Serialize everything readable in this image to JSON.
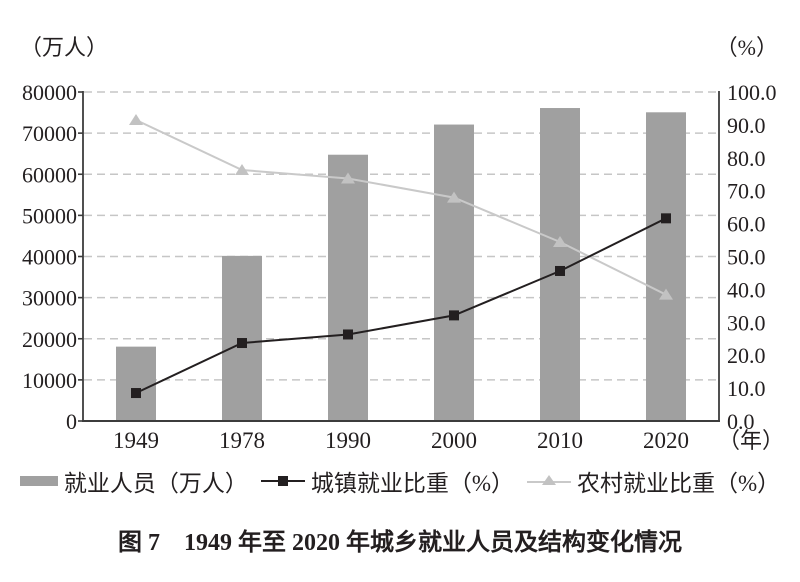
{
  "caption": "图 7　1949 年至 2020 年城乡就业人员及结构变化情况",
  "colors": {
    "bar": "#a0a0a0",
    "urban_line": "#231f20",
    "rural_line": "#c9c9c9",
    "rural_marker": "#c2c2c2",
    "gridline": "#c6c6c6",
    "axis": "#3c3c3c",
    "text": "#231f20"
  },
  "chart_data": {
    "type": "combo-bar-line",
    "title": "图7 1949年至2020年城乡就业人员及结构变化情况",
    "categories": [
      "1949",
      "1978",
      "1990",
      "2000",
      "2010",
      "2020"
    ],
    "series": [
      {
        "name": "就业人员（万人）",
        "type": "bar",
        "axis": "left",
        "color": "#a0a0a0",
        "values": [
          18082,
          40152,
          64749,
          72085,
          76105,
          75064
        ]
      },
      {
        "name": "城镇就业比重（%）",
        "type": "line",
        "marker": "square",
        "axis": "right",
        "color": "#231f20",
        "marker_color": "#231f20",
        "values": [
          8.5,
          23.7,
          26.3,
          32.1,
          45.6,
          61.6
        ]
      },
      {
        "name": "农村就业比重（%）",
        "type": "line",
        "marker": "triangle",
        "axis": "right",
        "color": "#c9c9c9",
        "marker_color": "#c2c2c2",
        "values": [
          91.5,
          76.3,
          73.7,
          67.9,
          54.4,
          38.4
        ]
      }
    ],
    "left_axis": {
      "unit": "（万人）",
      "min": 0,
      "max": 80000,
      "tick_step": 10000,
      "tick_labels": [
        "0",
        "10000",
        "20000",
        "30000",
        "40000",
        "50000",
        "60000",
        "70000",
        "80000"
      ]
    },
    "right_axis": {
      "unit": "（%）",
      "min": 0,
      "max": 100,
      "tick_step": 10,
      "tick_labels": [
        "0.0",
        "10.0",
        "20.0",
        "30.0",
        "40.0",
        "50.0",
        "60.0",
        "70.0",
        "80.0",
        "90.0",
        "100.0"
      ]
    },
    "x_axis": {
      "unit": "（年）"
    },
    "grid": true,
    "grid_style": "dashed",
    "legend_position": "bottom"
  }
}
